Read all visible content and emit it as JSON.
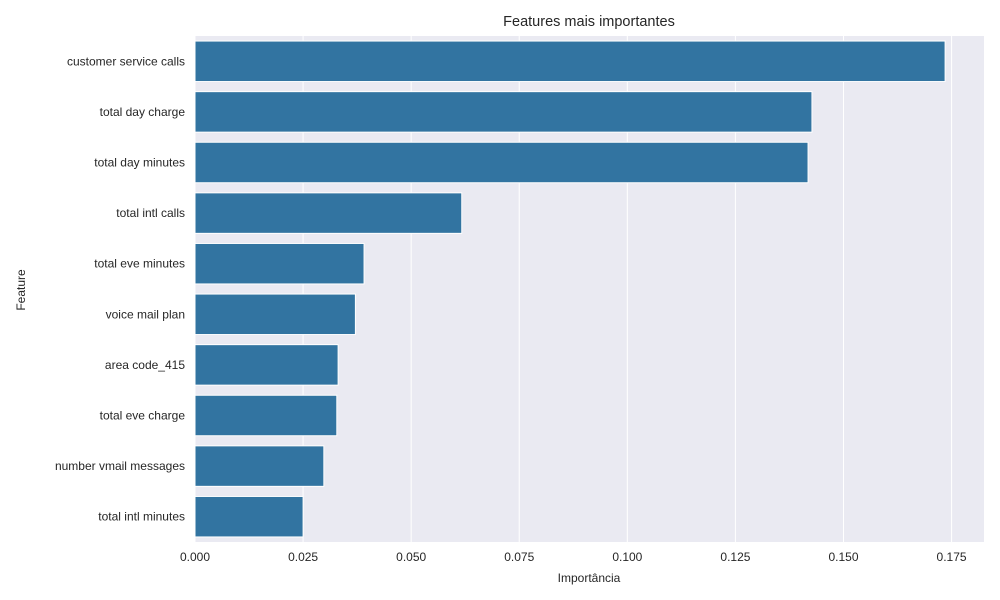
{
  "chart_data": {
    "type": "bar",
    "orientation": "horizontal",
    "title": "Features mais importantes",
    "xlabel": "Importância",
    "ylabel": "Feature",
    "categories": [
      "customer service calls",
      "total day charge",
      "total day minutes",
      "total intl calls",
      "total eve minutes",
      "voice mail plan",
      "area code_415",
      "total eve charge",
      "number vmail messages",
      "total intl minutes"
    ],
    "values": [
      0.1735,
      0.1427,
      0.1418,
      0.0617,
      0.0391,
      0.0371,
      0.0331,
      0.0328,
      0.0298,
      0.025
    ],
    "xlim": [
      0,
      0.1825
    ],
    "xticks": [
      0.0,
      0.025,
      0.05,
      0.075,
      0.1,
      0.125,
      0.15,
      0.175
    ],
    "xtick_labels": [
      "0.000",
      "0.025",
      "0.050",
      "0.075",
      "0.100",
      "0.125",
      "0.150",
      "0.175"
    ],
    "grid": true,
    "colors": {
      "bar": "#3274a1",
      "plot_background": "#eaeaf2",
      "grid": "#ffffff",
      "text": "#262626"
    }
  }
}
